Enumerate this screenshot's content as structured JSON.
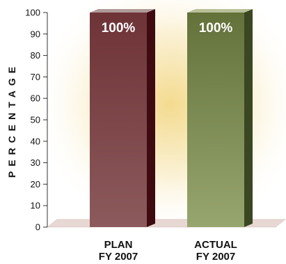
{
  "chart_data": {
    "type": "bar",
    "title": "",
    "xlabel": "",
    "ylabel": "PERCENTAGE",
    "ylim": [
      0,
      100
    ],
    "yticks": [
      0,
      10,
      20,
      30,
      40,
      50,
      60,
      70,
      80,
      90,
      100
    ],
    "categories": [
      {
        "line1": "PLAN",
        "line2": "FY 2007"
      },
      {
        "line1": "ACTUAL",
        "line2": "FY 2007"
      }
    ],
    "values": [
      100,
      100
    ],
    "data_labels": [
      "100%",
      "100%"
    ],
    "bar_colors": [
      {
        "front_top": "#6e3337",
        "front_bottom": "#8c5a5c",
        "side": "#3d0b10",
        "top": "#b09a98"
      },
      {
        "front_top": "#63713a",
        "front_bottom": "#97a66e",
        "side": "#3a4722",
        "top": "#b9c099"
      }
    ],
    "grid": false,
    "legend": "none",
    "background_glow": "#f3d98a"
  }
}
